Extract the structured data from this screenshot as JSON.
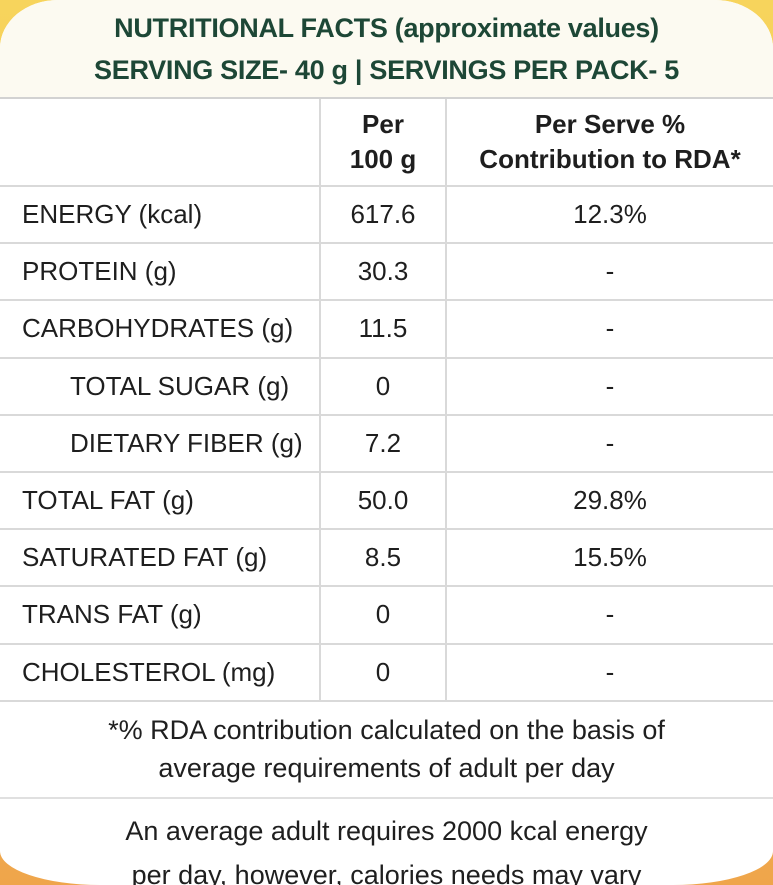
{
  "header": {
    "title": "NUTRITIONAL FACTS (approximate values)",
    "serving_info": "SERVING SIZE- 40 g | SERVINGS PER PACK- 5"
  },
  "table": {
    "columns": {
      "nutrient": "",
      "per100g": {
        "line1": "Per",
        "line2": "100 g"
      },
      "rda": {
        "line1": "Per Serve %",
        "line2": "Contribution to RDA*"
      }
    },
    "rows": [
      {
        "label": "ENERGY (kcal)",
        "per100g": "617.6",
        "rda": "12.3%",
        "indent": false
      },
      {
        "label": "PROTEIN (g)",
        "per100g": "30.3",
        "rda": "-",
        "indent": false
      },
      {
        "label": "CARBOHYDRATES (g)",
        "per100g": "11.5",
        "rda": "-",
        "indent": false
      },
      {
        "label": "TOTAL SUGAR (g)",
        "per100g": "0",
        "rda": "-",
        "indent": true
      },
      {
        "label": "DIETARY FIBER (g)",
        "per100g": "7.2",
        "rda": "-",
        "indent": true
      },
      {
        "label": "TOTAL FAT (g)",
        "per100g": "50.0",
        "rda": "29.8%",
        "indent": false
      },
      {
        "label": "SATURATED FAT (g)",
        "per100g": "8.5",
        "rda": "15.5%",
        "indent": false
      },
      {
        "label": "TRANS FAT (g)",
        "per100g": "0",
        "rda": "-",
        "indent": false
      },
      {
        "label": "CHOLESTEROL (mg)",
        "per100g": "0",
        "rda": "-",
        "indent": false
      }
    ]
  },
  "footnotes": {
    "rda_note_line1": "*% RDA contribution calculated on the basis of",
    "rda_note_line2": "average requirements of adult per day",
    "calorie_note_line1": "An average adult requires 2000 kcal energy",
    "calorie_note_line2": "per day, however, calories needs may vary"
  },
  "colors": {
    "header_text_green": "#1d4736",
    "header_band_cream": "#fcfaf1",
    "package_top_yellow": "#f7d45c",
    "package_bottom_orange": "#efa54b",
    "table_border_gray": "#d9d9d9",
    "body_text": "#1e1e1e"
  }
}
